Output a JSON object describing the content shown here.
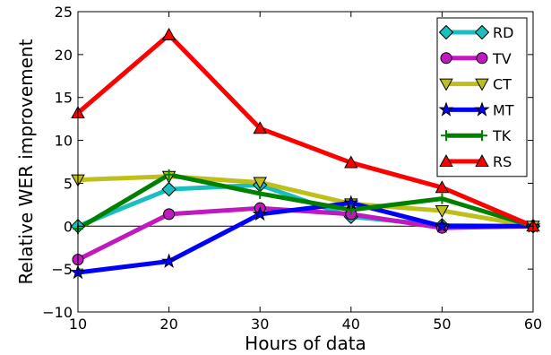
{
  "chart_data": {
    "type": "line",
    "xlabel": "Hours of data",
    "ylabel": "Relative WER improvement",
    "xlim": [
      10,
      60
    ],
    "ylim": [
      -10,
      25
    ],
    "x_ticks": [
      10,
      20,
      30,
      40,
      50,
      60
    ],
    "y_ticks": [
      -10,
      -5,
      0,
      5,
      10,
      15,
      20,
      25
    ],
    "x_tick_labels": [
      "10",
      "20",
      "30",
      "40",
      "50",
      "60"
    ],
    "y_tick_labels": [
      "−10",
      "−5",
      "0",
      "5",
      "10",
      "15",
      "20",
      "25"
    ],
    "zero_line": true,
    "grid": false,
    "legend_position": "top-right",
    "x": [
      10,
      20,
      30,
      40,
      50,
      60
    ],
    "series": [
      {
        "name": "RD",
        "color": "#19bfbf",
        "marker": "diamond",
        "values": [
          0.0,
          4.3,
          4.8,
          1.1,
          0.1,
          0.0
        ]
      },
      {
        "name": "TV",
        "color": "#bf19bf",
        "marker": "circle",
        "values": [
          -3.9,
          1.4,
          2.1,
          1.4,
          -0.2,
          0.0
        ]
      },
      {
        "name": "CT",
        "color": "#bfbf19",
        "marker": "triangle-down",
        "values": [
          5.4,
          5.8,
          5.1,
          2.6,
          1.8,
          0.0
        ]
      },
      {
        "name": "MT",
        "color": "#0000ff",
        "marker": "star",
        "values": [
          -5.4,
          -4.1,
          1.4,
          2.7,
          0.0,
          0.0
        ]
      },
      {
        "name": "TK",
        "color": "#008000",
        "marker": "plus",
        "values": [
          -0.3,
          6.0,
          3.8,
          1.9,
          3.2,
          0.0
        ]
      },
      {
        "name": "RS",
        "color": "#ff0000",
        "marker": "triangle-up",
        "values": [
          13.2,
          22.3,
          11.4,
          7.4,
          4.5,
          0.0
        ]
      }
    ]
  }
}
